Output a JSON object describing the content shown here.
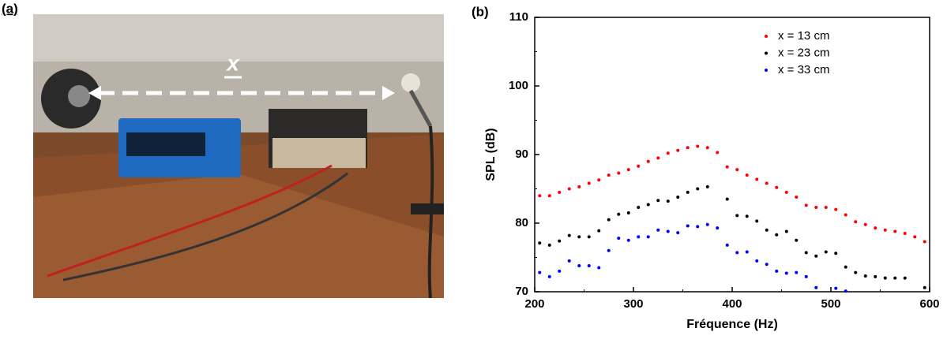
{
  "panel_labels": [
    "(a)",
    "(b)"
  ],
  "photo": {
    "arrow_label": "x"
  },
  "chart_data": {
    "type": "scatter",
    "xlabel": "Fréquence (Hz)",
    "ylabel": "SPL (dB)",
    "x": [
      205,
      215,
      225,
      235,
      245,
      255,
      265,
      275,
      285,
      295,
      305,
      315,
      325,
      335,
      345,
      355,
      365,
      375,
      385,
      395,
      405,
      415,
      425,
      435,
      445,
      455,
      465,
      475,
      485,
      495,
      505,
      515,
      525,
      535,
      545,
      555,
      565,
      575,
      585,
      595
    ],
    "series": [
      {
        "name": "x = 13 cm",
        "color": "#ff0000",
        "values": [
          84.0,
          84.0,
          84.5,
          85.0,
          85.3,
          85.8,
          86.3,
          87.0,
          87.3,
          87.8,
          88.3,
          89.0,
          89.5,
          90.2,
          90.6,
          91.0,
          91.2,
          91.0,
          90.3,
          88.2,
          87.8,
          87.0,
          86.4,
          85.8,
          85.2,
          84.5,
          83.8,
          82.6,
          82.3,
          82.3,
          82.0,
          81.2,
          80.2,
          79.8,
          79.3,
          79.0,
          78.8,
          78.5,
          78.0,
          77.3
        ]
      },
      {
        "name": "x = 23 cm",
        "color": "#000000",
        "values": [
          77.1,
          76.8,
          77.4,
          78.2,
          78.0,
          78.0,
          78.9,
          80.5,
          81.3,
          81.5,
          82.3,
          82.7,
          83.3,
          83.2,
          83.8,
          84.5,
          85.0,
          85.3,
          null,
          83.5,
          81.1,
          81.0,
          80.3,
          79.0,
          78.3,
          78.8,
          77.5,
          75.7,
          75.2,
          75.8,
          75.6,
          73.6,
          72.8,
          72.3,
          72.2,
          72.0,
          72.0,
          72.0,
          null,
          70.6
        ]
      },
      {
        "name": "x = 33 cm",
        "color": "#0000ff",
        "values": [
          72.8,
          72.2,
          73.0,
          74.5,
          73.8,
          73.8,
          73.5,
          76.0,
          77.8,
          77.5,
          78.0,
          78.0,
          79.0,
          78.8,
          78.6,
          79.6,
          79.5,
          79.8,
          79.3,
          76.8,
          75.7,
          75.8,
          74.5,
          74.0,
          73.0,
          72.7,
          72.8,
          72.2,
          70.6,
          null,
          70.5,
          70.1,
          null,
          null,
          null,
          null,
          null,
          null,
          null,
          null
        ]
      }
    ],
    "xlim": [
      200,
      600
    ],
    "xticks": [
      200,
      300,
      400,
      500,
      600
    ],
    "ylim": [
      70,
      110
    ],
    "yticks": [
      70,
      80,
      90,
      100,
      110
    ],
    "grid": false,
    "legend": "upper right"
  }
}
